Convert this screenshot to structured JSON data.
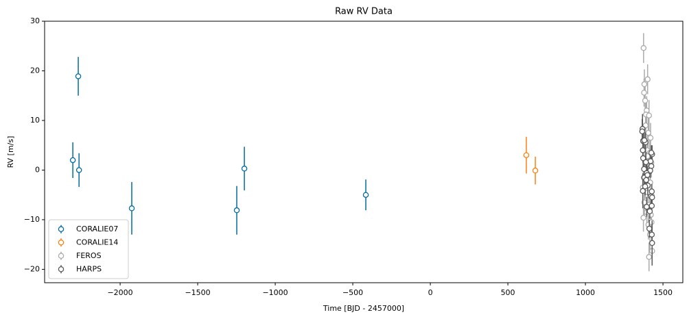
{
  "chart_data": {
    "type": "errorbar-scatter",
    "title": "Raw RV Data",
    "x_label": "Time [BJD - 2457000]",
    "y_label": "RV [m/s]",
    "xlim": [
      -2487,
      1628
    ],
    "ylim": [
      -22.7,
      30
    ],
    "xticks": [
      {
        "value": -2000,
        "label": "−2000"
      },
      {
        "value": -1500,
        "label": "−1500"
      },
      {
        "value": -1000,
        "label": "−1000"
      },
      {
        "value": -500,
        "label": "−500"
      },
      0,
      500,
      1000,
      1500
    ],
    "yticks": [
      {
        "value": -20,
        "label": "−20"
      },
      {
        "value": -10,
        "label": "−10"
      },
      0,
      10,
      20,
      30
    ],
    "legend": "lower left",
    "series": [
      {
        "name": "CORALIE07",
        "color": "#006ba4",
        "x": [
          -2305,
          -2270,
          -2265,
          -1925,
          -1248,
          -1199,
          -416
        ],
        "values": [
          2.0,
          18.9,
          0.0,
          -7.7,
          -8.1,
          0.3,
          -5.0
        ],
        "errors": [
          3.6,
          3.9,
          3.4,
          5.3,
          4.9,
          4.4,
          3.1
        ]
      },
      {
        "name": "CORALIE14",
        "color": "#ff800e",
        "x": [
          619,
          677
        ],
        "values": [
          3.0,
          -0.1
        ],
        "errors": [
          3.7,
          2.8
        ]
      },
      {
        "name": "FEROS",
        "color": "#ababab",
        "x": [
          1375,
          1380,
          1378,
          1385,
          1401,
          1395,
          1390,
          1410,
          1388,
          1405,
          1420,
          1372,
          1398,
          1415,
          1383,
          1425,
          1392,
          1408,
          1376,
          1418,
          1386,
          1402,
          1428,
          1380,
          1412,
          1396,
          1422,
          1374,
          1406,
          1426,
          1416,
          1430,
          1410,
          1370,
          1400
        ],
        "values": [
          24.6,
          17.3,
          15.6,
          14.0,
          18.3,
          12.0,
          11.2,
          11.0,
          9.0,
          7.5,
          6.5,
          5.8,
          4.0,
          3.5,
          2.2,
          1.5,
          0.5,
          -0.5,
          -1.5,
          -2.5,
          -3.0,
          -4.5,
          -5.2,
          -6.5,
          -7.0,
          -8.5,
          -9.0,
          -9.6,
          -11.0,
          -10.5,
          -13.0,
          -16.3,
          -17.5,
          -3.5,
          2.8
        ],
        "errors": [
          3.0,
          3.0,
          2.8,
          3.0,
          3.0,
          2.9,
          3.0,
          3.1,
          2.8,
          3.0,
          3.0,
          2.9,
          3.0,
          3.0,
          2.8,
          3.0,
          3.0,
          2.9,
          3.0,
          3.0,
          2.8,
          3.0,
          3.0,
          3.0,
          2.9,
          3.0,
          3.0,
          2.8,
          3.0,
          3.0,
          3.0,
          3.0,
          2.9,
          3.0,
          3.0
        ]
      },
      {
        "name": "HARPS",
        "color": "#595959",
        "x": [
          1368,
          1366,
          1372,
          1388,
          1370,
          1430,
          1372,
          1420,
          1390,
          1425,
          1378,
          1418,
          1395,
          1380,
          1392,
          1402,
          1385,
          1428,
          1370,
          1422,
          1430,
          1428,
          1395,
          1415,
          1412,
          1428,
          1430,
          1380,
          1425,
          1400
        ],
        "values": [
          8.3,
          7.8,
          5.9,
          5.6,
          4.0,
          3.2,
          2.4,
          1.8,
          1.6,
          0.8,
          0.2,
          -0.1,
          -0.6,
          -1.5,
          -2.0,
          -3.1,
          -3.3,
          -4.3,
          -4.2,
          -5.3,
          -5.5,
          -7.2,
          -7.4,
          -8.3,
          -11.8,
          -13.0,
          -14.7,
          6.0,
          3.5,
          -1.0
        ],
        "errors": [
          3.0,
          2.5,
          2.0,
          2.0,
          2.5,
          1.8,
          2.0,
          1.5,
          2.0,
          1.5,
          2.0,
          1.5,
          2.0,
          1.8,
          1.5,
          2.0,
          1.8,
          1.5,
          3.5,
          1.5,
          1.8,
          1.5,
          2.0,
          1.5,
          1.8,
          1.5,
          4.5,
          2.0,
          1.5,
          1.8
        ]
      }
    ]
  }
}
